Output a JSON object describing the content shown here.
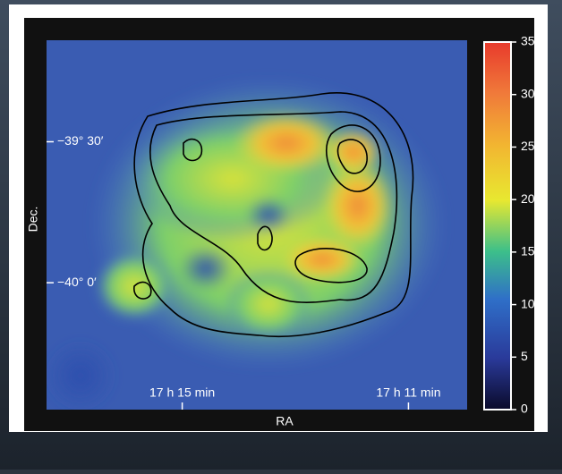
{
  "chart_data": {
    "type": "heatmap",
    "xlabel": "RA",
    "ylabel": "Dec.",
    "xlim": [
      17.29,
      17.166
    ],
    "xticks": [
      {
        "value": 17.25,
        "label": "17 h 15 min"
      },
      {
        "value": 17.1833,
        "label": "17 h 11 min"
      }
    ],
    "ylim": [
      -40.45,
      -39.14
    ],
    "yticks": [
      {
        "value": -39.5,
        "label": "−39° 30′"
      },
      {
        "value": -40,
        "label": "−40° 0′"
      }
    ],
    "colorbar": {
      "lim": [
        0,
        35
      ],
      "ticks": [
        0,
        5,
        10,
        15,
        20,
        25,
        30,
        35
      ]
    }
  }
}
